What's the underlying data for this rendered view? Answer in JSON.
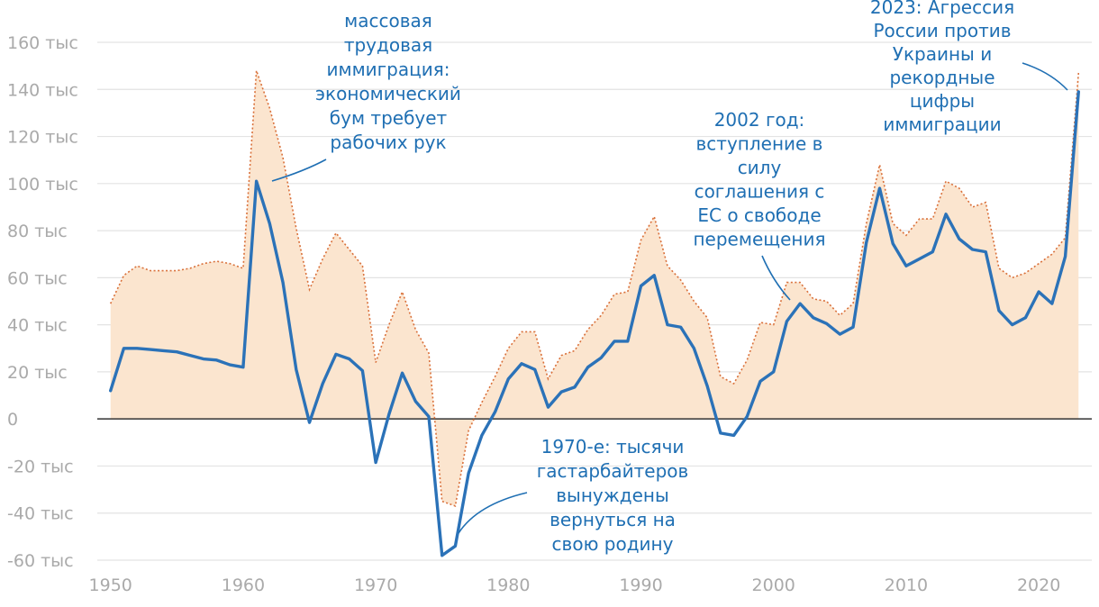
{
  "chart_data": {
    "type": "line",
    "unit_suffix": "тыс",
    "ylim": [
      -60,
      160
    ],
    "xlim": [
      1949,
      2024
    ],
    "x_ticks": [
      1950,
      1960,
      1970,
      1980,
      1990,
      2000,
      2010,
      2020
    ],
    "y_ticks": [
      -60,
      -40,
      -20,
      0,
      20,
      40,
      60,
      80,
      100,
      120,
      140,
      160
    ],
    "grid": true,
    "colors": {
      "net": "#2b72b8",
      "immigration_line": "#d9703a",
      "immigration_fill": "#fbe5cf",
      "grid": "#e3e3e3",
      "zero_line": "#333333",
      "annotation": "#1f6fb3"
    },
    "years": [
      1950,
      1951,
      1952,
      1953,
      1954,
      1955,
      1956,
      1957,
      1958,
      1959,
      1960,
      1961,
      1962,
      1963,
      1964,
      1965,
      1966,
      1967,
      1968,
      1969,
      1970,
      1971,
      1972,
      1973,
      1974,
      1975,
      1976,
      1977,
      1978,
      1979,
      1980,
      1981,
      1982,
      1983,
      1984,
      1985,
      1986,
      1987,
      1988,
      1989,
      1990,
      1991,
      1992,
      1993,
      1994,
      1995,
      1996,
      1997,
      1998,
      1999,
      2000,
      2001,
      2002,
      2003,
      2004,
      2005,
      2006,
      2007,
      2008,
      2009,
      2010,
      2011,
      2012,
      2013,
      2014,
      2015,
      2016,
      2017,
      2018,
      2019,
      2020,
      2021,
      2022,
      2023
    ],
    "series": [
      {
        "key": "net",
        "style": "solid",
        "values": [
          12,
          30,
          30,
          29.5,
          29,
          28.5,
          27,
          25.5,
          25,
          23,
          22,
          101,
          83,
          58,
          21,
          -1.5,
          15,
          27.5,
          25.5,
          20.5,
          -18.5,
          2,
          19.5,
          7.5,
          1,
          -58,
          -54,
          -23,
          -7,
          3,
          17,
          23.5,
          21,
          5,
          11.5,
          13.5,
          22,
          26,
          33,
          33,
          56.5,
          61,
          40,
          39,
          30,
          14,
          -6,
          -7,
          1,
          16,
          20,
          41.5,
          49,
          43,
          40.5,
          36,
          39,
          75,
          98,
          74.5,
          65,
          68,
          71,
          87,
          76.5,
          72,
          71,
          46,
          40,
          43,
          54,
          49,
          69,
          139
        ]
      },
      {
        "key": "immigration",
        "style": "dotted-area",
        "values": [
          49,
          61,
          65,
          63,
          63,
          63,
          64,
          66,
          67,
          66,
          64,
          148,
          132,
          111,
          81,
          55,
          68,
          79,
          72,
          65,
          24,
          40,
          54,
          38,
          28,
          -35,
          -37,
          -5,
          7,
          18,
          30,
          37,
          37,
          17,
          27,
          29,
          38,
          44,
          53,
          54,
          76,
          86,
          65,
          59,
          50,
          43,
          18,
          15,
          25,
          41,
          40,
          58,
          58,
          51,
          50,
          44,
          49,
          83,
          108,
          83,
          78,
          85,
          85,
          101,
          98,
          90,
          92,
          64,
          60,
          62,
          66,
          70,
          77,
          147
        ]
      }
    ],
    "annotations": [
      {
        "id": "mass-immigration",
        "lines": [
          "массовая",
          "трудовая",
          "иммиграция:",
          "экономический",
          "бум требует",
          "рабочих рук"
        ]
      },
      {
        "id": "seventies",
        "lines": [
          "1970-е: тысячи",
          "гастарбайтеров",
          "вынуждены",
          "вернуться на",
          "свою родину"
        ]
      },
      {
        "id": "eu-2002",
        "lines": [
          "2002 год:",
          "вступление в",
          "силу",
          "соглашения с",
          "ЕС о свободе",
          "перемещения"
        ]
      },
      {
        "id": "russia-2023",
        "lines": [
          "2023: Агрессия",
          "России против",
          "Украины и",
          "рекордные",
          "цифры",
          "иммиграции"
        ]
      }
    ]
  }
}
